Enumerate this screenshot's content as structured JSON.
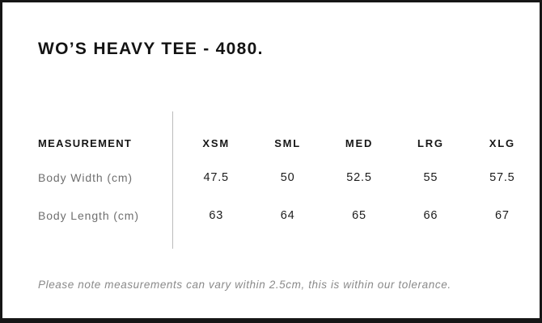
{
  "product": {
    "title": "WO’S HEAVY TEE - 4080."
  },
  "size_chart": {
    "measurement_header": "MEASUREMENT",
    "size_headers": [
      "XSM",
      "SML",
      "MED",
      "LRG",
      "XLG"
    ],
    "rows": [
      {
        "label": "Body Width (cm)",
        "values": [
          "47.5",
          "50",
          "52.5",
          "55",
          "57.5"
        ]
      },
      {
        "label": "Body Length (cm)",
        "values": [
          "63",
          "64",
          "65",
          "66",
          "67"
        ]
      }
    ]
  },
  "footer": {
    "note": "Please note measurements can vary within 2.5cm, this is within our tolerance."
  },
  "colors": {
    "border": "#161616",
    "text_primary": "#161616",
    "label_gray": "#6f6f6f",
    "note_gray": "#8a8a8a",
    "divider_gray": "#bcbcbc",
    "background": "#ffffff"
  }
}
